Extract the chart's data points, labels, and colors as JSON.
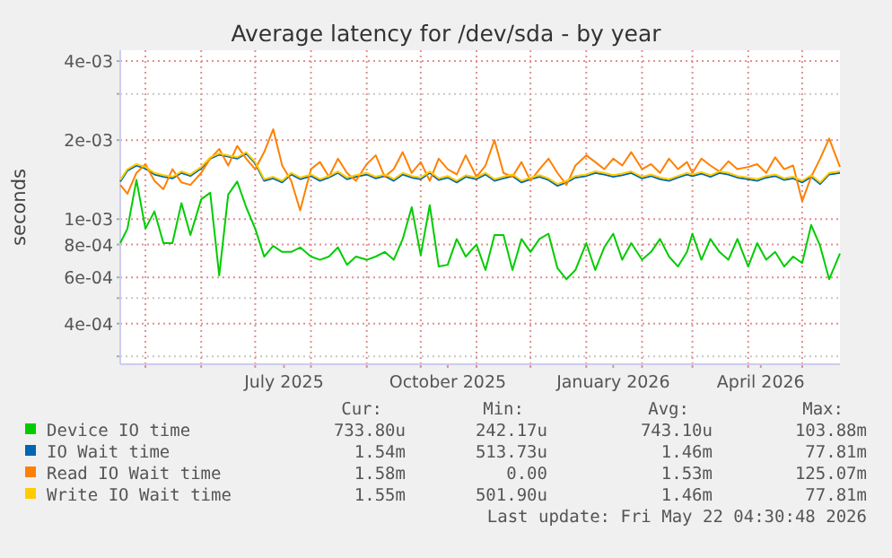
{
  "chart_data": {
    "type": "line",
    "title": "Average latency for /dev/sda - by year",
    "ylabel": "seconds",
    "log": "y",
    "grid": true,
    "legend": "bottom",
    "line_style": "solid",
    "xlim": [
      "2025-04-17",
      "2026-05-22"
    ],
    "xticks": [
      {
        "value": "2025-05-01",
        "label": null
      },
      {
        "value": "2025-06-01",
        "label": null
      },
      {
        "value": "2025-07-01",
        "label": null
      },
      {
        "value": "2025-07-17",
        "label": "July 2025"
      },
      {
        "value": "2025-08-01",
        "label": null
      },
      {
        "value": "2025-09-01",
        "label": null
      },
      {
        "value": "2025-10-01",
        "label": null
      },
      {
        "value": "2025-10-16",
        "label": "October 2025"
      },
      {
        "value": "2025-11-01",
        "label": null
      },
      {
        "value": "2025-12-01",
        "label": null
      },
      {
        "value": "2026-01-01",
        "label": null
      },
      {
        "value": "2026-01-16",
        "label": "January 2026"
      },
      {
        "value": "2026-02-01",
        "label": null
      },
      {
        "value": "2026-03-01",
        "label": null
      },
      {
        "value": "2026-04-01",
        "label": null
      },
      {
        "value": "2026-04-08",
        "label": "April 2026"
      },
      {
        "value": "2026-05-01",
        "label": null
      }
    ],
    "ylim": [
      0.00028,
      0.0044
    ],
    "yticks": [
      {
        "value": 0.004,
        "label": "4e-03"
      },
      {
        "value": 0.003,
        "label": null
      },
      {
        "value": 0.002,
        "label": "2e-03"
      },
      {
        "value": 0.001,
        "label": "1e-03"
      },
      {
        "value": 0.0008,
        "label": "8e-04"
      },
      {
        "value": 0.0006,
        "label": "6e-04"
      },
      {
        "value": 0.0005,
        "label": null
      },
      {
        "value": 0.0004,
        "label": "4e-04"
      },
      {
        "value": 0.0003,
        "label": null
      }
    ],
    "x": [
      "2025-04-17",
      "2025-04-21",
      "2025-04-26",
      "2025-05-01",
      "2025-05-06",
      "2025-05-11",
      "2025-05-16",
      "2025-05-21",
      "2025-05-26",
      "2025-06-01",
      "2025-06-06",
      "2025-06-11",
      "2025-06-16",
      "2025-06-21",
      "2025-06-26",
      "2025-07-01",
      "2025-07-06",
      "2025-07-11",
      "2025-07-16",
      "2025-07-21",
      "2025-07-26",
      "2025-08-01",
      "2025-08-06",
      "2025-08-11",
      "2025-08-16",
      "2025-08-21",
      "2025-08-26",
      "2025-09-01",
      "2025-09-06",
      "2025-09-11",
      "2025-09-16",
      "2025-09-21",
      "2025-09-26",
      "2025-10-01",
      "2025-10-06",
      "2025-10-11",
      "2025-10-16",
      "2025-10-21",
      "2025-10-26",
      "2025-11-01",
      "2025-11-06",
      "2025-11-11",
      "2025-11-16",
      "2025-11-21",
      "2025-11-26",
      "2025-12-01",
      "2025-12-06",
      "2025-12-11",
      "2025-12-16",
      "2025-12-21",
      "2025-12-26",
      "2026-01-01",
      "2026-01-06",
      "2026-01-11",
      "2026-01-16",
      "2026-01-21",
      "2026-01-26",
      "2026-02-01",
      "2026-02-06",
      "2026-02-11",
      "2026-02-16",
      "2026-02-21",
      "2026-02-26",
      "2026-03-01",
      "2026-03-06",
      "2026-03-11",
      "2026-03-16",
      "2026-03-21",
      "2026-03-26",
      "2026-04-01",
      "2026-04-06",
      "2026-04-11",
      "2026-04-16",
      "2026-04-21",
      "2026-04-26",
      "2026-05-01",
      "2026-05-06",
      "2026-05-11",
      "2026-05-16",
      "2026-05-22"
    ],
    "series": [
      {
        "name": "Device IO time",
        "color": "#00cc00",
        "values": [
          0.00081,
          0.00092,
          0.00141,
          0.00092,
          0.00107,
          0.00081,
          0.00081,
          0.00115,
          0.00087,
          0.00119,
          0.00126,
          0.00061,
          0.00124,
          0.00139,
          0.00111,
          0.00092,
          0.00072,
          0.00079,
          0.00075,
          0.00075,
          0.00078,
          0.00072,
          0.0007,
          0.00072,
          0.00078,
          0.00067,
          0.00072,
          0.0007,
          0.00072,
          0.00075,
          0.0007,
          0.00084,
          0.00111,
          0.00073,
          0.00113,
          0.00066,
          0.00067,
          0.00084,
          0.00072,
          0.0008,
          0.00064,
          0.00087,
          0.00087,
          0.00064,
          0.00084,
          0.00075,
          0.00084,
          0.00088,
          0.00065,
          0.00059,
          0.00064,
          0.00081,
          0.00064,
          0.00078,
          0.00088,
          0.0007,
          0.00081,
          0.0007,
          0.00075,
          0.00084,
          0.00072,
          0.00066,
          0.00075,
          0.00088,
          0.0007,
          0.00084,
          0.00075,
          0.0007,
          0.00084,
          0.00066,
          0.00081,
          0.0007,
          0.00075,
          0.00066,
          0.00072,
          0.00068,
          0.00095,
          0.00079,
          0.00059,
          0.00074
        ]
      },
      {
        "name": "IO Wait time",
        "color": "#0066b3",
        "values": [
          0.00139,
          0.00153,
          0.0016,
          0.00156,
          0.00148,
          0.00145,
          0.00143,
          0.0015,
          0.00146,
          0.00156,
          0.0017,
          0.00176,
          0.00173,
          0.0017,
          0.00178,
          0.00163,
          0.0014,
          0.00143,
          0.00138,
          0.00148,
          0.00142,
          0.00146,
          0.0014,
          0.00144,
          0.0015,
          0.00142,
          0.00145,
          0.00148,
          0.00143,
          0.00146,
          0.0014,
          0.00148,
          0.00144,
          0.00142,
          0.0015,
          0.00141,
          0.00144,
          0.00138,
          0.00145,
          0.00142,
          0.00148,
          0.0014,
          0.00143,
          0.00146,
          0.00138,
          0.00142,
          0.00145,
          0.00141,
          0.00134,
          0.00138,
          0.00144,
          0.00146,
          0.0015,
          0.00148,
          0.00145,
          0.00147,
          0.0015,
          0.00143,
          0.00146,
          0.00142,
          0.0014,
          0.00144,
          0.00148,
          0.00146,
          0.00149,
          0.00145,
          0.0015,
          0.00148,
          0.00144,
          0.00142,
          0.0014,
          0.00144,
          0.00146,
          0.00141,
          0.00143,
          0.00138,
          0.00145,
          0.00136,
          0.00148,
          0.0015
        ]
      },
      {
        "name": "Read IO Wait time",
        "color": "#ff8000",
        "values": [
          0.00135,
          0.00125,
          0.0015,
          0.00162,
          0.0014,
          0.0013,
          0.00155,
          0.00138,
          0.00135,
          0.0015,
          0.0017,
          0.00185,
          0.0016,
          0.0019,
          0.0017,
          0.00155,
          0.0018,
          0.0022,
          0.0016,
          0.0014,
          0.00108,
          0.00155,
          0.00165,
          0.00145,
          0.0017,
          0.0015,
          0.0014,
          0.00162,
          0.00175,
          0.00145,
          0.00155,
          0.0018,
          0.0015,
          0.00165,
          0.0014,
          0.0017,
          0.00155,
          0.00148,
          0.00175,
          0.00145,
          0.0016,
          0.002,
          0.0015,
          0.00145,
          0.00165,
          0.0014,
          0.00155,
          0.0017,
          0.0015,
          0.00135,
          0.0016,
          0.00175,
          0.00165,
          0.00155,
          0.0017,
          0.0016,
          0.0018,
          0.00155,
          0.00162,
          0.0015,
          0.0017,
          0.00155,
          0.00165,
          0.0015,
          0.0017,
          0.0016,
          0.00152,
          0.00166,
          0.00155,
          0.00158,
          0.00162,
          0.0015,
          0.00172,
          0.00155,
          0.0016,
          0.00117,
          0.00145,
          0.0017,
          0.00203,
          0.00158
        ]
      },
      {
        "name": "Write IO Wait time",
        "color": "#ffcc00",
        "values": [
          0.00141,
          0.00155,
          0.00162,
          0.00158,
          0.0015,
          0.00147,
          0.00145,
          0.00152,
          0.00148,
          0.00158,
          0.00172,
          0.00178,
          0.00175,
          0.00172,
          0.0018,
          0.00165,
          0.00142,
          0.00145,
          0.0014,
          0.0015,
          0.00144,
          0.00148,
          0.00142,
          0.00146,
          0.00152,
          0.00144,
          0.00147,
          0.0015,
          0.00145,
          0.00148,
          0.00142,
          0.0015,
          0.00146,
          0.00144,
          0.00152,
          0.00143,
          0.00146,
          0.0014,
          0.00147,
          0.00144,
          0.0015,
          0.00142,
          0.00145,
          0.00148,
          0.0014,
          0.00144,
          0.00147,
          0.00143,
          0.00136,
          0.0014,
          0.00146,
          0.00148,
          0.00152,
          0.0015,
          0.00147,
          0.00149,
          0.00152,
          0.00145,
          0.00148,
          0.00144,
          0.00142,
          0.00146,
          0.0015,
          0.00148,
          0.00151,
          0.00147,
          0.00152,
          0.0015,
          0.00146,
          0.00144,
          0.00142,
          0.00146,
          0.00148,
          0.00143,
          0.00145,
          0.0014,
          0.00147,
          0.00138,
          0.0015,
          0.00152
        ]
      }
    ],
    "annotations": [
      "Cur:",
      "Min:",
      "Avg:",
      "Max:",
      "733.80u",
      "242.17u",
      "743.10u",
      "103.88m",
      "1.54m",
      "513.73u",
      "1.46m",
      "77.81m",
      "1.58m",
      "0.00",
      "1.53m",
      "125.07m",
      "1.55m",
      "501.90u",
      "1.46m",
      "77.81m",
      "Last update: Fri May 22 04:30:48 2026"
    ]
  }
}
